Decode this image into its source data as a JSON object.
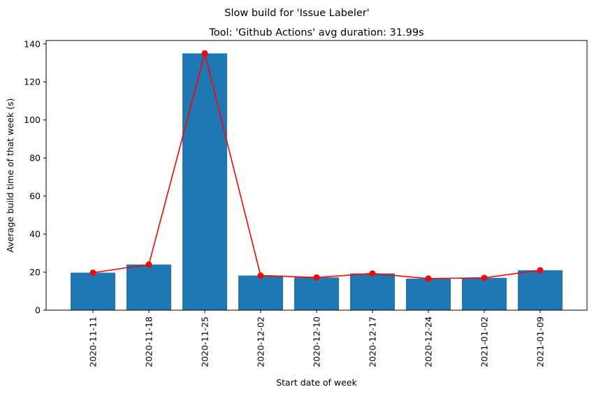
{
  "figure_title": "Slow build for 'Issue Labeler'",
  "chart_data": {
    "type": "bar",
    "title": "Tool: 'Github Actions' avg duration: 31.99s",
    "xlabel": "Start date of week",
    "ylabel": "Average build time of that week (s)",
    "categories": [
      "2020-11-11",
      "2020-11-18",
      "2020-11-25",
      "2020-12-02",
      "2020-12-10",
      "2020-12-17",
      "2020-12-24",
      "2021-01-02",
      "2021-01-09"
    ],
    "series": [
      {
        "type": "bar",
        "values": [
          19.7,
          24.0,
          135.0,
          18.2,
          17.2,
          19.3,
          16.6,
          17.0,
          21.0
        ],
        "color": "#1f77b4"
      },
      {
        "type": "line",
        "marker": "circle",
        "values": [
          19.7,
          24.0,
          135.0,
          18.2,
          17.2,
          19.3,
          16.6,
          17.0,
          21.0
        ],
        "color": "#ff0000"
      }
    ],
    "ylim": [
      0,
      141.75
    ],
    "yticks": [
      0,
      20,
      40,
      60,
      80,
      100,
      120,
      140
    ],
    "x_tick_rotation": 90,
    "grid": false,
    "legend": "none"
  }
}
